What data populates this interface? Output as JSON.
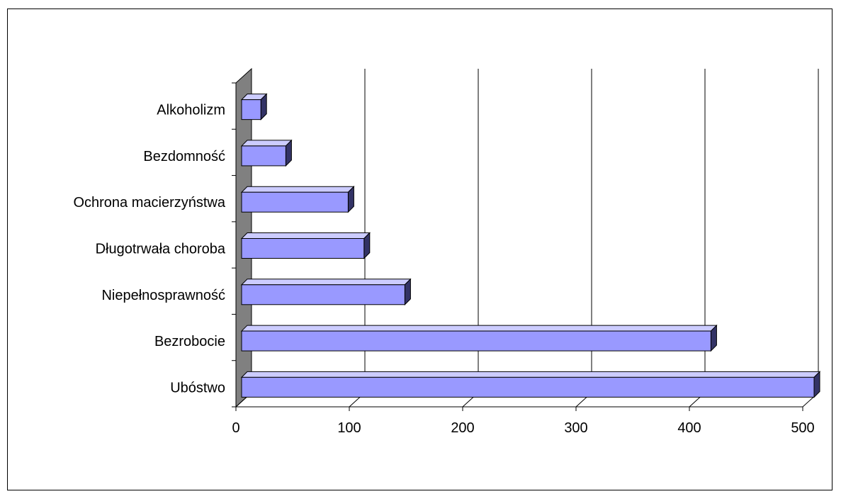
{
  "chart_data": {
    "type": "bar",
    "orientation": "horizontal",
    "style": "3d",
    "categories": [
      "Alkoholizm",
      "Bezdomność",
      "Ochrona macierzyństwa",
      "Długotrwała choroba",
      "Niepełnosprawność",
      "Bezrobocie",
      "Ubóstwo"
    ],
    "values": [
      17,
      39,
      94,
      108,
      144,
      414,
      505
    ],
    "xlim": [
      0,
      500
    ],
    "xticks": [
      "0",
      "100",
      "200",
      "300",
      "400",
      "500"
    ],
    "grid": "vertical",
    "legend": "none",
    "colors": {
      "bar_front": "#9999ff",
      "bar_top": "#ccccff",
      "bar_side": "#333366",
      "wall": "#808080",
      "gridline": "#000000"
    }
  }
}
